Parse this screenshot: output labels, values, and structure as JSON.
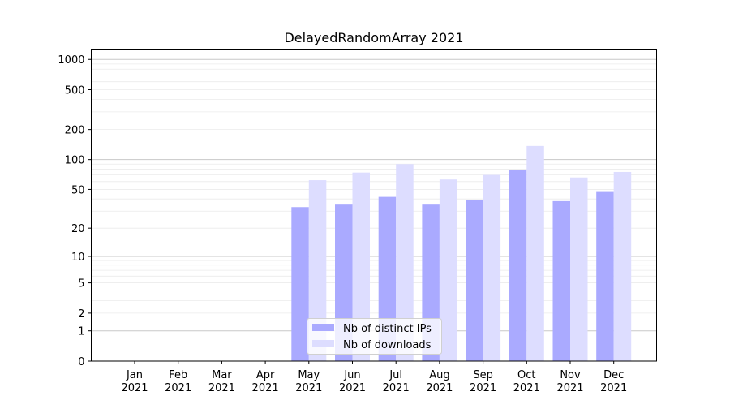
{
  "chart_data": {
    "type": "bar",
    "title": "DelayedRandomArray 2021",
    "xlabel": "",
    "ylabel": "",
    "yscale": "log(1+y)",
    "ylim": [
      0,
      1300
    ],
    "yticks": [
      0,
      1,
      2,
      5,
      10,
      20,
      50,
      100,
      200,
      500,
      1000
    ],
    "grid": true,
    "legend_placement": "bottom-center",
    "categories": [
      [
        "Jan",
        "2021"
      ],
      [
        "Feb",
        "2021"
      ],
      [
        "Mar",
        "2021"
      ],
      [
        "Apr",
        "2021"
      ],
      [
        "May",
        "2021"
      ],
      [
        "Jun",
        "2021"
      ],
      [
        "Jul",
        "2021"
      ],
      [
        "Aug",
        "2021"
      ],
      [
        "Sep",
        "2021"
      ],
      [
        "Oct",
        "2021"
      ],
      [
        "Nov",
        "2021"
      ],
      [
        "Dec",
        "2021"
      ]
    ],
    "series": [
      {
        "name": "Nb of distinct IPs",
        "color": "#aaaaff",
        "values": [
          0,
          0,
          0,
          0,
          33,
          35,
          42,
          35,
          39,
          78,
          38,
          48
        ]
      },
      {
        "name": "Nb of downloads",
        "color": "#ddddff",
        "values": [
          0,
          0,
          0,
          0,
          62,
          74,
          90,
          63,
          70,
          137,
          66,
          75
        ]
      }
    ]
  }
}
